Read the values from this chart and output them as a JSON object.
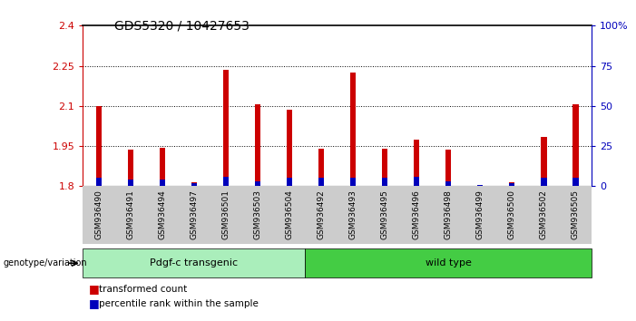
{
  "title": "GDS5320 / 10427653",
  "samples": [
    "GSM936490",
    "GSM936491",
    "GSM936494",
    "GSM936497",
    "GSM936501",
    "GSM936503",
    "GSM936504",
    "GSM936492",
    "GSM936493",
    "GSM936495",
    "GSM936496",
    "GSM936498",
    "GSM936499",
    "GSM936500",
    "GSM936502",
    "GSM936505"
  ],
  "red_values": [
    2.1,
    1.935,
    1.945,
    1.815,
    2.235,
    2.105,
    2.085,
    1.94,
    2.225,
    1.94,
    1.975,
    1.935,
    1.8,
    1.815,
    1.985,
    2.105
  ],
  "blue_values": [
    5,
    4,
    4,
    2,
    6,
    3,
    5,
    5,
    5,
    5,
    6,
    3,
    1,
    2,
    5,
    5
  ],
  "blue_max": 100,
  "red_min": 1.8,
  "red_max": 2.4,
  "yticks_left": [
    1.8,
    1.95,
    2.1,
    2.25,
    2.4
  ],
  "yticks_right": [
    0,
    25,
    50,
    75,
    100
  ],
  "ytick_labels_left": [
    "1.8",
    "1.95",
    "2.1",
    "2.25",
    "2.4"
  ],
  "ytick_labels_right": [
    "0",
    "25",
    "50",
    "75",
    "100%"
  ],
  "group1_label": "Pdgf-c transgenic",
  "group2_label": "wild type",
  "group1_count": 7,
  "group2_count": 9,
  "genotype_label": "genotype/variation",
  "legend_red": "transformed count",
  "legend_blue": "percentile rank within the sample",
  "red_color": "#cc0000",
  "blue_color": "#0000bb",
  "group1_color": "#aaeebb",
  "group2_color": "#44cc44",
  "bar_width": 0.18,
  "bg_color": "#cccccc"
}
